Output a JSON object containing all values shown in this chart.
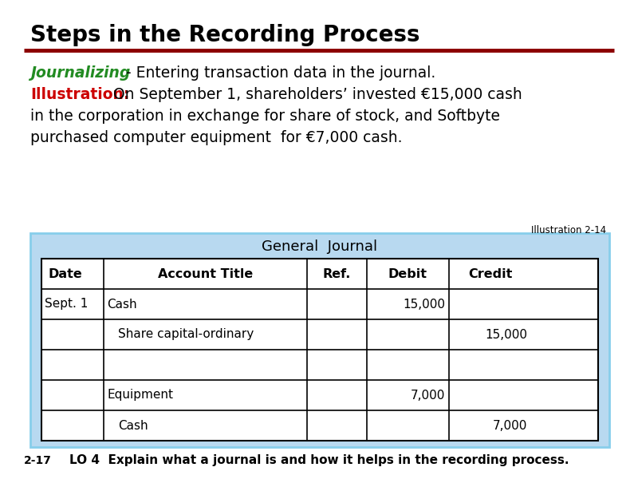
{
  "title": "Steps in the Recording Process",
  "title_color": "#000000",
  "title_fontsize": 20,
  "red_line_color": "#8B0000",
  "journalizing_label": "Journalizing",
  "journalizing_color": "#228B22",
  "journalizing_rest": " - Entering transaction data in the journal.",
  "illustration_label": "Illustration:",
  "illustration_color": "#CC0000",
  "illustration_line1": "  On September 1, shareholders’ invested €15,000 cash",
  "illustration_line2": "in the corporation in exchange for share of stock, and Softbyte",
  "illustration_line3": "purchased computer equipment  for €7,000 cash.",
  "illustration_ref": "Illustration 2-14",
  "table_bg": "#B8D9F0",
  "table_inner_bg": "#FFFFFF",
  "table_title": "General  Journal",
  "col_headers": [
    "Date",
    "Account Title",
    "Ref.",
    "Debit",
    "Credit"
  ],
  "rows": [
    [
      "Sept. 1",
      "Cash",
      "",
      "15,000",
      ""
    ],
    [
      "",
      "Share capital-ordinary",
      "",
      "",
      "15,000"
    ],
    [
      "",
      "",
      "",
      "",
      ""
    ],
    [
      "",
      "Equipment",
      "",
      "7,000",
      ""
    ],
    [
      "",
      "Cash",
      "",
      "",
      "7,000"
    ]
  ],
  "row_indents": [
    false,
    true,
    false,
    false,
    true
  ],
  "footer_left": "2-17",
  "footer_right": "LO 4  Explain what a journal is and how it helps in the recording process.",
  "footer_color": "#000000",
  "bg_color": "#FFFFFF"
}
